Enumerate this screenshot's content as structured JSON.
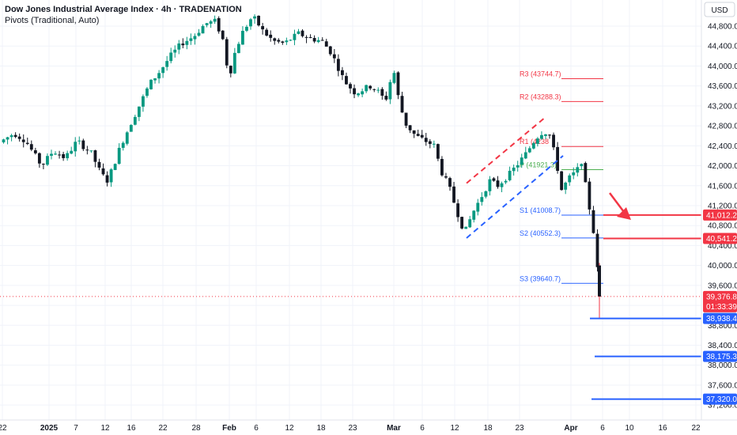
{
  "legend": {
    "title": "Dow Jones Industrial Average Index · 4h · TRADENATION",
    "subtitle": "Pivots (Traditional, Auto)"
  },
  "currency": "USD",
  "chart_data": {
    "type": "candlestick",
    "ylim": [
      37100,
      45150
    ],
    "y_ticks": [
      37200,
      37600,
      38000,
      38400,
      38800,
      39200,
      39600,
      40000,
      40400,
      40800,
      41200,
      41600,
      42000,
      42400,
      42800,
      43200,
      43600,
      44000,
      44400,
      44800
    ],
    "x_labels": [
      "22",
      "2025",
      "7",
      "12",
      "16",
      "22",
      "28",
      "Feb",
      "6",
      "12",
      "18",
      "23",
      "Mar",
      "6",
      "12",
      "18",
      "23",
      "Apr",
      "6",
      "10",
      "16",
      "22"
    ],
    "price_path": [
      [
        0,
        42450
      ],
      [
        20,
        42650
      ],
      [
        35,
        42500
      ],
      [
        55,
        42000
      ],
      [
        70,
        42300
      ],
      [
        85,
        42150
      ],
      [
        100,
        42500
      ],
      [
        118,
        42250
      ],
      [
        130,
        41850
      ],
      [
        138,
        41700
      ],
      [
        145,
        41950
      ],
      [
        155,
        42400
      ],
      [
        168,
        42850
      ],
      [
        180,
        43250
      ],
      [
        192,
        43650
      ],
      [
        205,
        43900
      ],
      [
        218,
        44200
      ],
      [
        232,
        44450
      ],
      [
        248,
        44600
      ],
      [
        262,
        44850
      ],
      [
        275,
        44900
      ],
      [
        285,
        44500
      ],
      [
        292,
        43750
      ],
      [
        300,
        44300
      ],
      [
        310,
        44700
      ],
      [
        322,
        45000
      ],
      [
        335,
        44700
      ],
      [
        348,
        44500
      ],
      [
        362,
        44450
      ],
      [
        380,
        44650
      ],
      [
        395,
        44550
      ],
      [
        410,
        44500
      ],
      [
        422,
        44250
      ],
      [
        438,
        43700
      ],
      [
        452,
        43450
      ],
      [
        470,
        43600
      ],
      [
        480,
        43500
      ],
      [
        490,
        43300
      ],
      [
        500,
        43950
      ],
      [
        507,
        43300
      ],
      [
        515,
        42850
      ],
      [
        528,
        42600
      ],
      [
        540,
        42500
      ],
      [
        552,
        42400
      ],
      [
        560,
        41900
      ],
      [
        570,
        41600
      ],
      [
        580,
        41100
      ],
      [
        590,
        40650
      ],
      [
        600,
        41050
      ],
      [
        612,
        41400
      ],
      [
        622,
        41700
      ],
      [
        632,
        41600
      ],
      [
        645,
        41800
      ],
      [
        658,
        42050
      ],
      [
        668,
        42250
      ],
      [
        680,
        42550
      ],
      [
        690,
        42700
      ],
      [
        698,
        42600
      ],
      [
        706,
        42100
      ],
      [
        712,
        41500
      ],
      [
        722,
        41750
      ],
      [
        732,
        41900
      ],
      [
        738,
        42100
      ],
      [
        745,
        41400
      ],
      [
        752,
        40800
      ],
      [
        757,
        40200
      ],
      [
        760,
        39376.8
      ]
    ],
    "candle_count": 150,
    "last_price": 39376.8,
    "countdown": "01:33:39",
    "pivots": [
      {
        "label": "R3",
        "value": 43744.7,
        "color": "#f23645"
      },
      {
        "label": "R2",
        "value": 43288.3,
        "color": "#f23645"
      },
      {
        "label": "R1",
        "value": 42386,
        "color": "#f23645"
      },
      {
        "label": "P",
        "value": 41921.3,
        "color": "#4caf50"
      },
      {
        "label": "S1",
        "value": 41008.7,
        "color": "#2962ff"
      },
      {
        "label": "S2",
        "value": 40552.3,
        "color": "#2962ff"
      },
      {
        "label": "S3",
        "value": 39640.7,
        "color": "#2962ff"
      }
    ],
    "pivot_labels": [
      "R3 (43744.7)",
      "R2 (43288.3)",
      "R1 (4238",
      "P (41921.3)",
      "S1 (41008.7)",
      "S2 (40552.3)",
      "S3 (39640.7)"
    ],
    "horizontal_levels": [
      {
        "value": 41012.2,
        "color": "#f23645"
      },
      {
        "value": 40541.2,
        "color": "#f23645"
      },
      {
        "value": 38938.4,
        "color": "#2962ff"
      },
      {
        "value": 38175.3,
        "color": "#2962ff"
      },
      {
        "value": 37320.0,
        "color": "#2962ff"
      }
    ],
    "level_tags": [
      "41,012.2",
      "40,541.2",
      "38,938.4",
      "38,175.3",
      "37,320.0"
    ],
    "price_tags_labels": [
      "39,376.8",
      "01:33:39"
    ],
    "channel": {
      "upper": [
        [
          590,
          41650
        ],
        [
          688,
          42950
        ]
      ],
      "lower": [
        [
          590,
          40550
        ],
        [
          712,
          42200
        ]
      ]
    }
  }
}
